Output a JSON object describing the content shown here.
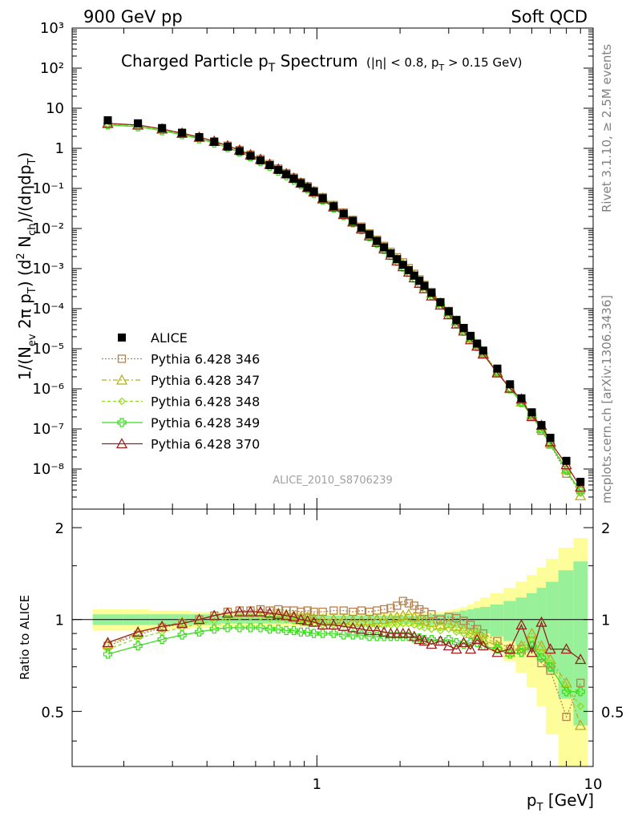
{
  "header": {
    "left": "900 GeV pp",
    "right": "Soft QCD"
  },
  "side_labels": {
    "rivet": "Rivet 3.1.10, ≥ 2.5M events",
    "mcplots": "mcplots.cern.ch [arXiv:1306.3436]"
  },
  "chart_data": [
    {
      "type": "scatter",
      "title": "Charged Particle pT Spectrum",
      "title_sub": "(|η| < 0.8, pT > 0.15 GeV)",
      "analysis_tag": "ALICE_2010_S8706239",
      "ylabel": "1/(Nev 2π pT) (d² Nch)/(dηdpT)",
      "xscale": "log",
      "yscale": "log",
      "xlim": [
        0.13,
        10
      ],
      "ylim": [
        1e-09,
        1000
      ],
      "ytick_labels": [
        "10⁻⁸",
        "10⁻⁷",
        "10⁻⁶",
        "10⁻⁵",
        "10⁻⁴",
        "10⁻³",
        "10⁻²",
        "10⁻¹",
        "1",
        "10",
        "10²",
        "10³"
      ],
      "legend_position": "lower-left",
      "x": [
        0.175,
        0.225,
        0.275,
        0.325,
        0.375,
        0.425,
        0.475,
        0.525,
        0.575,
        0.625,
        0.675,
        0.725,
        0.775,
        0.825,
        0.875,
        0.925,
        0.975,
        1.05,
        1.15,
        1.25,
        1.35,
        1.45,
        1.55,
        1.65,
        1.75,
        1.85,
        1.95,
        2.05,
        2.15,
        2.25,
        2.35,
        2.45,
        2.6,
        2.8,
        3.0,
        3.2,
        3.4,
        3.6,
        3.8,
        4.0,
        4.5,
        5.0,
        5.5,
        6.0,
        6.5,
        7.0,
        8.0,
        9.0
      ],
      "series": [
        {
          "name": "ALICE",
          "color": "#000000",
          "marker": "filled-square",
          "values": [
            5.0,
            4.2,
            3.2,
            2.45,
            1.9,
            1.45,
            1.1,
            0.85,
            0.65,
            0.5,
            0.38,
            0.29,
            0.225,
            0.175,
            0.135,
            0.106,
            0.083,
            0.057,
            0.036,
            0.0235,
            0.0155,
            0.0104,
            0.0071,
            0.0049,
            0.0034,
            0.0024,
            0.00172,
            0.00124,
            0.00091,
            0.00067,
            0.0005,
            0.00037,
            0.00025,
            0.000145,
            8.6e-05,
            5.2e-05,
            3.3e-05,
            2.1e-05,
            1.35e-05,
            9e-06,
            3.2e-06,
            1.3e-06,
            5.8e-07,
            2.6e-07,
            1.25e-07,
            6e-08,
            1.6e-08,
            4.8e-09
          ]
        },
        {
          "name": "Pythia 6.428 346",
          "color": "#b5804c",
          "marker": "open-square",
          "dash": "2,2",
          "ratio": [
            0.82,
            0.89,
            0.94,
            0.97,
            1.0,
            1.03,
            1.06,
            1.07,
            1.07,
            1.08,
            1.07,
            1.08,
            1.07,
            1.07,
            1.06,
            1.07,
            1.06,
            1.06,
            1.07,
            1.07,
            1.06,
            1.07,
            1.06,
            1.07,
            1.08,
            1.09,
            1.11,
            1.15,
            1.13,
            1.11,
            1.08,
            1.06,
            1.04,
            1.0,
            1.02,
            1.01,
            0.99,
            0.96,
            0.93,
            0.9,
            0.85,
            0.8,
            0.8,
            0.82,
            0.72,
            0.68,
            0.48,
            0.62
          ]
        },
        {
          "name": "Pythia 6.428 347",
          "color": "#b6b01a",
          "marker": "open-triangle",
          "dash": "6,3,2,3",
          "ratio": [
            0.83,
            0.9,
            0.95,
            0.98,
            1.0,
            1.03,
            1.05,
            1.06,
            1.06,
            1.06,
            1.05,
            1.05,
            1.04,
            1.03,
            1.02,
            1.02,
            1.01,
            1.0,
            1.0,
            1.0,
            0.99,
            0.99,
            0.99,
            1.0,
            1.0,
            1.01,
            1.02,
            1.03,
            1.04,
            1.02,
            1.0,
            0.99,
            0.98,
            0.96,
            0.97,
            0.95,
            0.93,
            0.9,
            0.88,
            0.86,
            0.82,
            0.78,
            0.82,
            0.9,
            0.82,
            0.74,
            0.62,
            0.45
          ]
        },
        {
          "name": "Pythia 6.428 348",
          "color": "#8ede1a",
          "marker": "open-diamond",
          "dash": "4,3",
          "ratio": [
            0.8,
            0.87,
            0.91,
            0.94,
            0.97,
            0.99,
            1.01,
            1.02,
            1.02,
            1.02,
            1.01,
            1.01,
            1.0,
            0.99,
            0.98,
            0.98,
            0.97,
            0.96,
            0.96,
            0.96,
            0.95,
            0.95,
            0.95,
            0.95,
            0.95,
            0.96,
            0.96,
            0.97,
            0.97,
            0.96,
            0.95,
            0.94,
            0.93,
            0.92,
            0.93,
            0.91,
            0.9,
            0.9,
            0.92,
            0.88,
            0.83,
            0.78,
            0.8,
            0.86,
            0.78,
            0.72,
            0.6,
            0.52
          ]
        },
        {
          "name": "Pythia 6.428 349",
          "color": "#3bdb1d",
          "marker": "open-cross",
          "dash": "",
          "ratio": [
            0.77,
            0.82,
            0.86,
            0.89,
            0.91,
            0.93,
            0.94,
            0.94,
            0.94,
            0.94,
            0.93,
            0.93,
            0.92,
            0.92,
            0.91,
            0.91,
            0.9,
            0.9,
            0.9,
            0.89,
            0.89,
            0.89,
            0.88,
            0.88,
            0.88,
            0.88,
            0.88,
            0.88,
            0.88,
            0.87,
            0.87,
            0.86,
            0.86,
            0.85,
            0.86,
            0.84,
            0.83,
            0.84,
            0.84,
            0.82,
            0.8,
            0.77,
            0.78,
            0.82,
            0.75,
            0.7,
            0.58,
            0.58
          ]
        },
        {
          "name": "Pythia 6.428 370",
          "color": "#9a1f1f",
          "marker": "open-triangle",
          "dash": "",
          "ratio": [
            0.84,
            0.91,
            0.95,
            0.97,
            1.0,
            1.03,
            1.05,
            1.06,
            1.06,
            1.06,
            1.05,
            1.04,
            1.03,
            1.02,
            1.0,
            0.99,
            0.98,
            0.96,
            0.96,
            0.95,
            0.94,
            0.93,
            0.92,
            0.92,
            0.91,
            0.9,
            0.9,
            0.9,
            0.9,
            0.88,
            0.86,
            0.85,
            0.83,
            0.85,
            0.82,
            0.8,
            0.84,
            0.8,
            0.86,
            0.82,
            0.78,
            0.8,
            0.96,
            0.78,
            0.98,
            0.8,
            0.8,
            0.74
          ]
        }
      ]
    },
    {
      "type": "scatter",
      "ylabel": "Ratio to ALICE",
      "xlabel": "pT [GeV]",
      "xscale": "log",
      "xlim": [
        0.13,
        10
      ],
      "ylim": [
        0.33,
        2.3
      ],
      "ytick_labels": [
        "0.5",
        "1",
        "2"
      ],
      "xtick_labels": [
        "1",
        "10"
      ],
      "reference_line": 1.0,
      "bands": {
        "stat_color": "#98f098",
        "syst_color": "#fdfd9a",
        "stat_halfwidth": [
          0.04,
          0.04,
          0.04,
          0.04,
          0.04,
          0.04,
          0.03,
          0.03,
          0.03,
          0.03,
          0.03,
          0.03,
          0.03,
          0.03,
          0.03,
          0.03,
          0.03,
          0.03,
          0.03,
          0.03,
          0.03,
          0.03,
          0.03,
          0.03,
          0.03,
          0.03,
          0.03,
          0.03,
          0.03,
          0.03,
          0.03,
          0.03,
          0.04,
          0.04,
          0.05,
          0.06,
          0.07,
          0.08,
          0.09,
          0.1,
          0.12,
          0.15,
          0.18,
          0.22,
          0.27,
          0.33,
          0.45,
          0.55
        ],
        "syst_halfwidth": [
          0.08,
          0.08,
          0.07,
          0.07,
          0.06,
          0.06,
          0.05,
          0.05,
          0.05,
          0.05,
          0.05,
          0.05,
          0.05,
          0.05,
          0.05,
          0.05,
          0.05,
          0.05,
          0.05,
          0.05,
          0.05,
          0.05,
          0.05,
          0.05,
          0.05,
          0.05,
          0.05,
          0.05,
          0.05,
          0.05,
          0.05,
          0.05,
          0.06,
          0.06,
          0.07,
          0.08,
          0.1,
          0.12,
          0.15,
          0.18,
          0.22,
          0.27,
          0.33,
          0.4,
          0.48,
          0.58,
          0.72,
          0.85
        ]
      }
    }
  ]
}
